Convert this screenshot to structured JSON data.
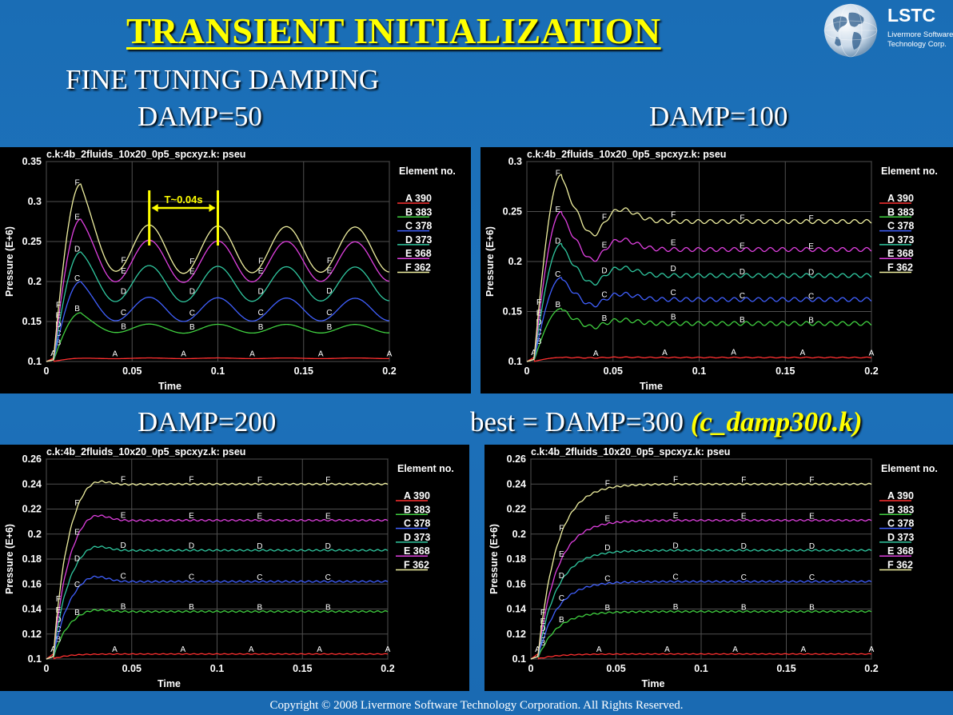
{
  "slide": {
    "title": "TRANSIENT INITIALIZATION",
    "subtitle": "FINE TUNING DAMPING",
    "copyright": "Copyright © 2008 Livermore Software Technology Corporation.  All Rights Reserved.",
    "damp_labels": [
      "DAMP=50",
      "DAMP=100",
      "DAMP=200"
    ],
    "best_label_prefix": "best = DAMP=300 ",
    "best_label_highlight": "(c_damp300.k)",
    "logo": {
      "name": "LSTC",
      "line1": "Livermore Software",
      "line2": "Technology Corp."
    },
    "colors": {
      "title": "#ffff00",
      "background": "#1a6db5",
      "plot_bg": "#000000"
    }
  },
  "chart_data": [
    {
      "type": "line",
      "title": "c.k:4b_2fluids_10x20_0p5_spcxyz.k: pseu",
      "xlabel": "Time",
      "ylabel": "Pressure (E+6)",
      "xlim": [
        0,
        0.2
      ],
      "ylim": [
        0.1,
        0.35
      ],
      "xticks": [
        "0",
        "0.05",
        "0.1",
        "0.15",
        "0.2"
      ],
      "yticks": [
        "0.1",
        "0.15",
        "0.2",
        "0.25",
        "0.3",
        "0.35"
      ],
      "yticks_values": [
        0.1,
        0.15,
        0.2,
        0.25,
        0.3,
        0.35
      ],
      "legend_title": "Element no.",
      "annotation": "T~0.04s",
      "series": [
        {
          "name": "A 390",
          "letter": "A",
          "color": "#ff3030",
          "final": 0.104,
          "peak": 0.104,
          "overshoot": 0,
          "osc": 0.0005
        },
        {
          "name": "B 383",
          "letter": "B",
          "color": "#40d040",
          "final": 0.141,
          "peak": 0.161,
          "overshoot": 0.012,
          "osc": 0.006
        },
        {
          "name": "C 378",
          "letter": "C",
          "color": "#4060ff",
          "final": 0.165,
          "peak": 0.2,
          "overshoot": 0.02,
          "osc": 0.016
        },
        {
          "name": "D 373",
          "letter": "D",
          "color": "#30c8a0",
          "final": 0.197,
          "peak": 0.237,
          "overshoot": 0.03,
          "osc": 0.024
        },
        {
          "name": "E 368",
          "letter": "E",
          "color": "#e040e0",
          "final": 0.225,
          "peak": 0.278,
          "overshoot": 0.04,
          "osc": 0.028
        },
        {
          "name": "F 362",
          "letter": "F",
          "color": "#f0f0a0",
          "final": 0.24,
          "peak": 0.322,
          "overshoot": 0.05,
          "osc": 0.032
        }
      ],
      "damping": 50
    },
    {
      "type": "line",
      "title": "c.k:4b_2fluids_10x20_0p5_spcxyz.k: pseu",
      "xlabel": "Time",
      "ylabel": "Pressure (E+6)",
      "xlim": [
        0,
        0.2
      ],
      "ylim": [
        0.1,
        0.3
      ],
      "xticks": [
        "0",
        "0.05",
        "0.1",
        "0.15",
        "0.2"
      ],
      "yticks": [
        "0.1",
        "0.15",
        "0.2",
        "0.25",
        "0.3"
      ],
      "yticks_values": [
        0.1,
        0.15,
        0.2,
        0.25,
        0.3
      ],
      "legend_title": "Element no.",
      "series": [
        {
          "name": "A 390",
          "letter": "A",
          "color": "#ff3030",
          "final": 0.104,
          "peak": 0.104,
          "overshoot": 0,
          "osc": 0.0004
        },
        {
          "name": "B 383",
          "letter": "B",
          "color": "#40d040",
          "final": 0.138,
          "peak": 0.153,
          "osc": 0.002
        },
        {
          "name": "C 378",
          "letter": "C",
          "color": "#4060ff",
          "final": 0.162,
          "peak": 0.184,
          "osc": 0.002
        },
        {
          "name": "D 373",
          "letter": "D",
          "color": "#30c8a0",
          "final": 0.186,
          "peak": 0.218,
          "osc": 0.002
        },
        {
          "name": "E 368",
          "letter": "E",
          "color": "#e040e0",
          "final": 0.212,
          "peak": 0.25,
          "osc": 0.002
        },
        {
          "name": "F 362",
          "letter": "F",
          "color": "#f0f0a0",
          "final": 0.24,
          "peak": 0.287,
          "osc": 0.002
        }
      ],
      "damping": 100
    },
    {
      "type": "line",
      "title": "c.k:4b_2fluids_10x20_0p5_spcxyz.k: pseu",
      "xlabel": "Time",
      "ylabel": "Pressure (E+6)",
      "xlim": [
        0,
        0.2
      ],
      "ylim": [
        0.1,
        0.26
      ],
      "xticks": [
        "0",
        "0.05",
        "0.1",
        "0.15",
        "0.2"
      ],
      "yticks": [
        "0.1",
        "0.12",
        "0.14",
        "0.16",
        "0.18",
        "0.2",
        "0.22",
        "0.24",
        "0.26"
      ],
      "yticks_values": [
        0.1,
        0.12,
        0.14,
        0.16,
        0.18,
        0.2,
        0.22,
        0.24,
        0.26
      ],
      "legend_title": "Element no.",
      "series": [
        {
          "name": "A 390",
          "letter": "A",
          "color": "#ff3030",
          "final": 0.104,
          "peak": 0.104,
          "osc": 0.0003
        },
        {
          "name": "B 383",
          "letter": "B",
          "color": "#40d040",
          "final": 0.138,
          "peak": 0.141,
          "osc": 0.0006
        },
        {
          "name": "C 378",
          "letter": "C",
          "color": "#4060ff",
          "final": 0.162,
          "peak": 0.169,
          "osc": 0.0006
        },
        {
          "name": "D 373",
          "letter": "D",
          "color": "#30c8a0",
          "final": 0.187,
          "peak": 0.194,
          "osc": 0.0006
        },
        {
          "name": "E 368",
          "letter": "E",
          "color": "#e040e0",
          "final": 0.211,
          "peak": 0.22,
          "osc": 0.0006
        },
        {
          "name": "F 362",
          "letter": "F",
          "color": "#f0f0a0",
          "final": 0.24,
          "peak": 0.248,
          "osc": 0.0006
        }
      ],
      "damping": 200
    },
    {
      "type": "line",
      "title": "c.k:4b_2fluids_10x20_0p5_spcxyz.k: pseu",
      "xlabel": "Time",
      "ylabel": "Pressure (E+6)",
      "xlim": [
        0,
        0.2
      ],
      "ylim": [
        0.1,
        0.26
      ],
      "xticks": [
        "0",
        "0.05",
        "0.1",
        "0.15",
        "0.2"
      ],
      "yticks": [
        "0.1",
        "0.12",
        "0.14",
        "0.16",
        "0.18",
        "0.2",
        "0.22",
        "0.24",
        "0.26"
      ],
      "yticks_values": [
        0.1,
        0.12,
        0.14,
        0.16,
        0.18,
        0.2,
        0.22,
        0.24,
        0.26
      ],
      "legend_title": "Element no.",
      "series": [
        {
          "name": "A 390",
          "letter": "A",
          "color": "#ff3030",
          "final": 0.104,
          "peak": 0.104,
          "osc": 0.0003
        },
        {
          "name": "B 383",
          "letter": "B",
          "color": "#40d040",
          "final": 0.138,
          "peak": 0.138,
          "osc": 0.0006
        },
        {
          "name": "C 378",
          "letter": "C",
          "color": "#4060ff",
          "final": 0.162,
          "peak": 0.162,
          "osc": 0.0006
        },
        {
          "name": "D 373",
          "letter": "D",
          "color": "#30c8a0",
          "final": 0.187,
          "peak": 0.187,
          "osc": 0.0006
        },
        {
          "name": "E 368",
          "letter": "E",
          "color": "#e040e0",
          "final": 0.211,
          "peak": 0.211,
          "osc": 0.0006
        },
        {
          "name": "F 362",
          "letter": "F",
          "color": "#f0f0a0",
          "final": 0.24,
          "peak": 0.24,
          "osc": 0.0006
        }
      ],
      "damping": 300
    }
  ]
}
